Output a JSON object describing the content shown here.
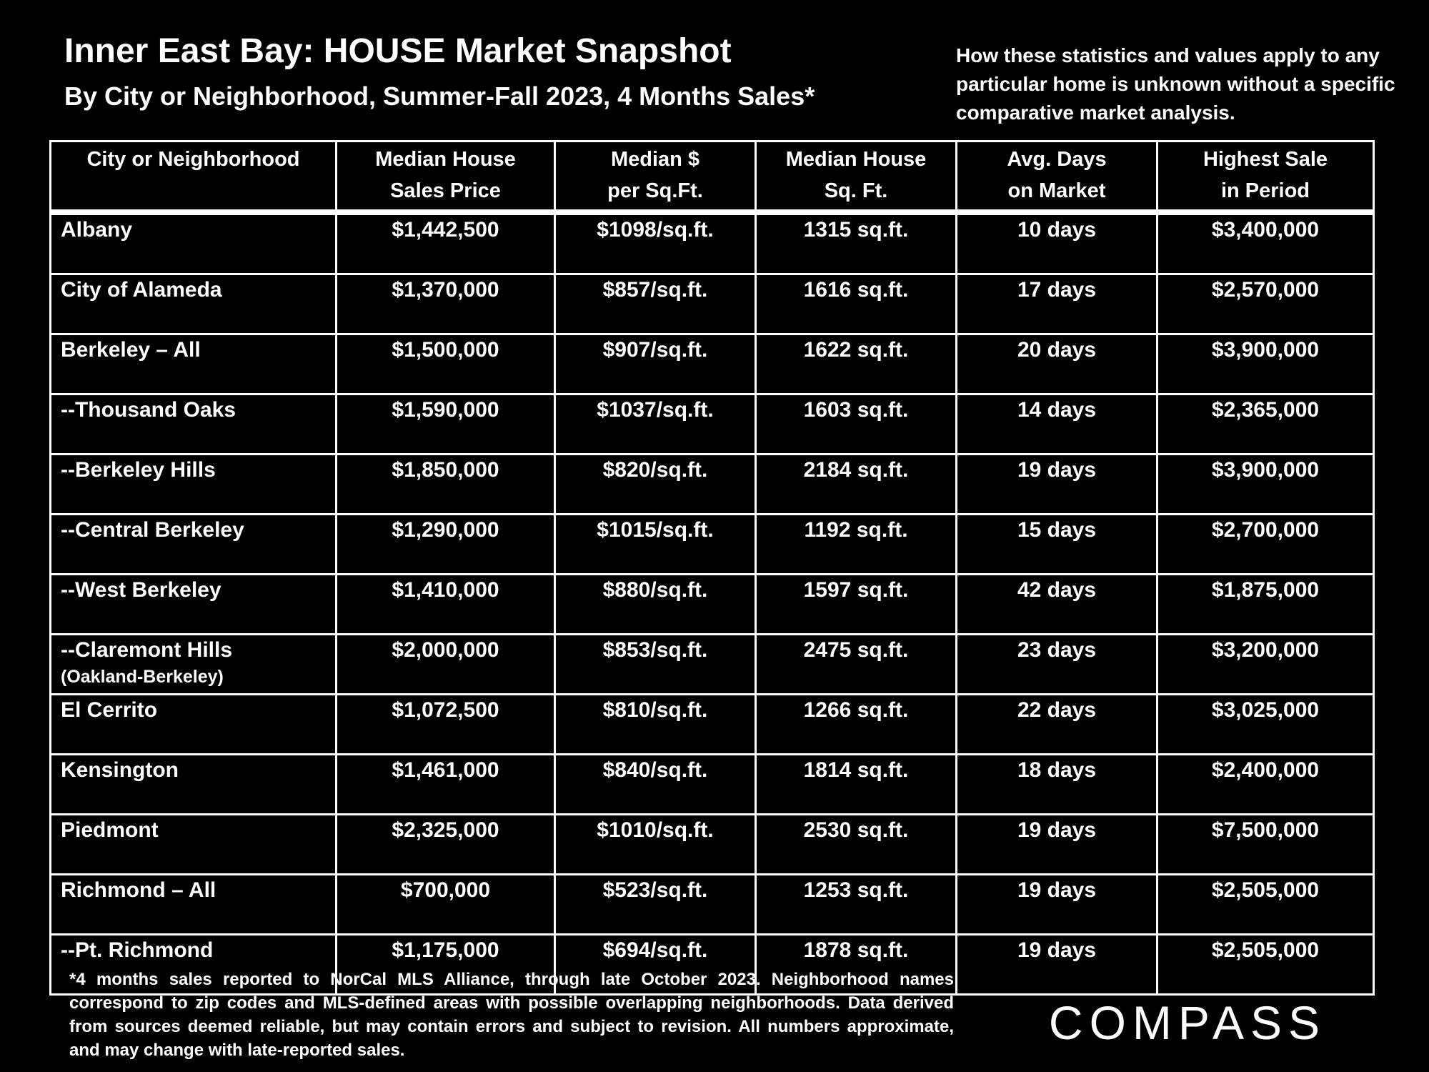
{
  "title": "Inner East Bay: HOUSE Market Snapshot",
  "subtitle": "By City or Neighborhood, Summer-Fall 2023, 4 Months Sales*",
  "note": "How these statistics and values apply to any particular home is unknown without a specific comparative market analysis.",
  "footnote": "*4 months sales reported to NorCal MLS Alliance, through late October 2023. Neighborhood names correspond to zip codes and MLS-defined areas with possible overlapping neighborhoods. Data derived from sources deemed reliable, but may contain errors and subject to revision. All numbers approximate, and may change with late-reported sales.",
  "logo_text": "COMPASS",
  "chart_data": {
    "type": "table",
    "title": "Inner East Bay: HOUSE Market Snapshot",
    "subtitle": "By City or Neighborhood, Summer-Fall 2023, 4 Months Sales*",
    "columns": [
      [
        "City or Neighborhood"
      ],
      [
        "Median House",
        "Sales Price"
      ],
      [
        "Median $",
        "per Sq.Ft."
      ],
      [
        "Median House",
        "Sq. Ft."
      ],
      [
        "Avg. Days",
        "on Market"
      ],
      [
        "Highest Sale",
        "in Period"
      ]
    ],
    "rows": [
      {
        "name": "Albany",
        "sub": "",
        "price": "$1,442,500",
        "ppsf": "$1098/sq.ft.",
        "sqft": "1315 sq.ft.",
        "dom": "10 days",
        "high": "$3,400,000"
      },
      {
        "name": "City of Alameda",
        "sub": "",
        "price": "$1,370,000",
        "ppsf": "$857/sq.ft.",
        "sqft": "1616 sq.ft.",
        "dom": "17 days",
        "high": "$2,570,000"
      },
      {
        "name": "Berkeley – All",
        "sub": "",
        "price": "$1,500,000",
        "ppsf": "$907/sq.ft.",
        "sqft": "1622 sq.ft.",
        "dom": "20 days",
        "high": "$3,900,000"
      },
      {
        "name": "--Thousand Oaks",
        "sub": "",
        "price": "$1,590,000",
        "ppsf": "$1037/sq.ft.",
        "sqft": "1603 sq.ft.",
        "dom": "14 days",
        "high": "$2,365,000"
      },
      {
        "name": "--Berkeley Hills",
        "sub": "",
        "price": "$1,850,000",
        "ppsf": "$820/sq.ft.",
        "sqft": "2184 sq.ft.",
        "dom": "19 days",
        "high": "$3,900,000"
      },
      {
        "name": "--Central Berkeley",
        "sub": "",
        "price": "$1,290,000",
        "ppsf": "$1015/sq.ft.",
        "sqft": "1192 sq.ft.",
        "dom": "15 days",
        "high": "$2,700,000"
      },
      {
        "name": "--West Berkeley",
        "sub": "",
        "price": "$1,410,000",
        "ppsf": "$880/sq.ft.",
        "sqft": "1597 sq.ft.",
        "dom": "42 days",
        "high": "$1,875,000"
      },
      {
        "name": "--Claremont Hills",
        "sub": "(Oakland-Berkeley)",
        "price": "$2,000,000",
        "ppsf": "$853/sq.ft.",
        "sqft": "2475 sq.ft.",
        "dom": "23 days",
        "high": "$3,200,000"
      },
      {
        "name": "El Cerrito",
        "sub": "",
        "price": "$1,072,500",
        "ppsf": "$810/sq.ft.",
        "sqft": "1266 sq.ft.",
        "dom": "22 days",
        "high": "$3,025,000"
      },
      {
        "name": "Kensington",
        "sub": "",
        "price": "$1,461,000",
        "ppsf": "$840/sq.ft.",
        "sqft": "1814 sq.ft.",
        "dom": "18 days",
        "high": "$2,400,000"
      },
      {
        "name": "Piedmont",
        "sub": "",
        "price": "$2,325,000",
        "ppsf": "$1010/sq.ft.",
        "sqft": "2530 sq.ft.",
        "dom": "19 days",
        "high": "$7,500,000"
      },
      {
        "name": "Richmond – All",
        "sub": "",
        "price": "$700,000",
        "ppsf": "$523/sq.ft.",
        "sqft": "1253 sq.ft.",
        "dom": "19 days",
        "high": "$2,505,000"
      },
      {
        "name": "--Pt. Richmond",
        "sub": "",
        "price": "$1,175,000",
        "ppsf": "$694/sq.ft.",
        "sqft": "1878 sq.ft.",
        "dom": "19 days",
        "high": "$2,505,000"
      }
    ]
  }
}
